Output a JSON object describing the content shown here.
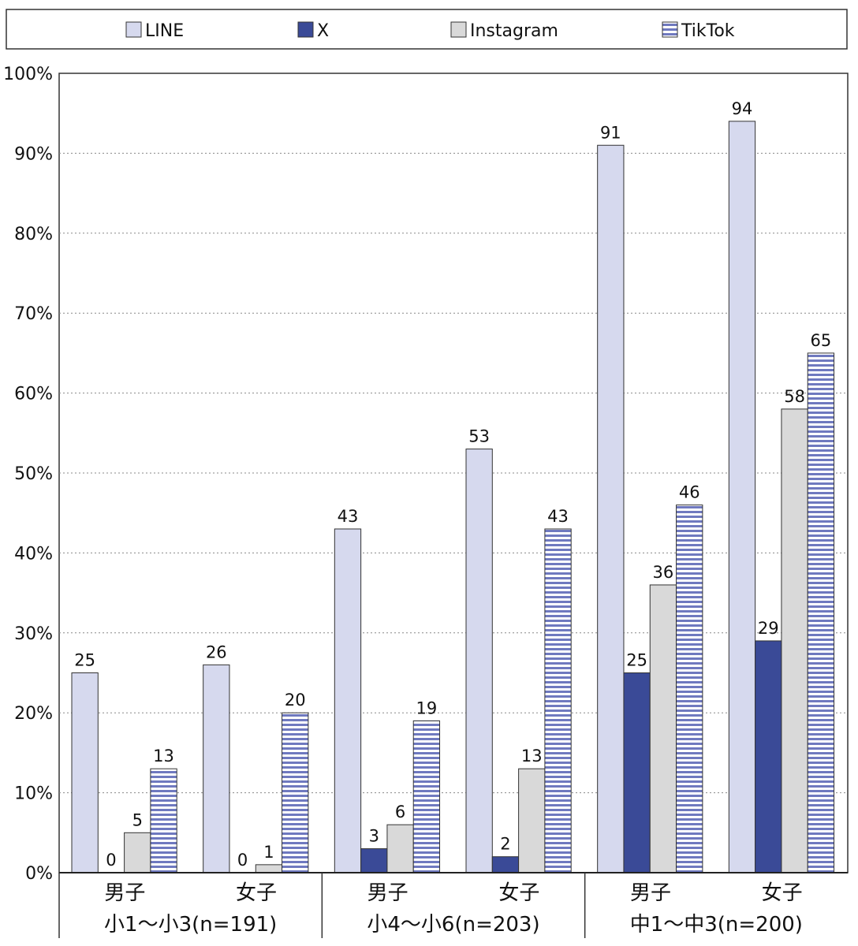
{
  "chart_data": {
    "type": "bar",
    "groups": [
      {
        "label": "小1～小3(n=191)",
        "subgroups": [
          "男子",
          "女子"
        ]
      },
      {
        "label": "小4～小6(n=203)",
        "subgroups": [
          "男子",
          "女子"
        ]
      },
      {
        "label": "中1～中3(n=200)",
        "subgroups": [
          "男子",
          "女子"
        ]
      }
    ],
    "categories": [
      "男子",
      "女子",
      "男子",
      "女子",
      "男子",
      "女子"
    ],
    "series": [
      {
        "name": "LINE",
        "values": [
          25,
          26,
          43,
          53,
          91,
          94
        ],
        "color": "#d6d9ee",
        "pattern": "solid"
      },
      {
        "name": "X",
        "values": [
          0,
          0,
          3,
          2,
          25,
          29
        ],
        "color": "#3a4a97",
        "pattern": "solid"
      },
      {
        "name": "Instagram",
        "values": [
          5,
          1,
          6,
          13,
          36,
          58
        ],
        "color": "#d9d9d9",
        "pattern": "solid"
      },
      {
        "name": "TikTok",
        "values": [
          13,
          20,
          19,
          43,
          46,
          65
        ],
        "color": "#6f79bf",
        "pattern": "horizontal-stripes"
      }
    ],
    "ylim": [
      0,
      100
    ],
    "yticks": [
      "0%",
      "10%",
      "20%",
      "30%",
      "40%",
      "50%",
      "60%",
      "70%",
      "80%",
      "90%",
      "100%"
    ],
    "grid": true,
    "legend": "top"
  }
}
